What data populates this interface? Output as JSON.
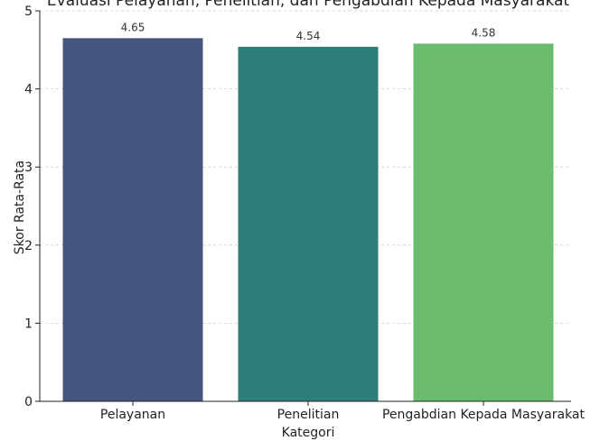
{
  "chart_data": {
    "type": "bar",
    "title": "Evaluasi Pelayanan, Penelitian, dan Pengabdian Kepada Masyarakat",
    "xlabel": "Kategori",
    "ylabel": "Skor Rata-Rata",
    "categories": [
      "Pelayanan",
      "Penelitian",
      "Pengabdian Kepada Masyarakat"
    ],
    "values": [
      4.65,
      4.54,
      4.58
    ],
    "data_labels": [
      "4.65",
      "4.54",
      "4.58"
    ],
    "colors": [
      "#46557d",
      "#2e7f7a",
      "#6abb6e"
    ],
    "ylim": [
      0,
      5
    ],
    "yticks": [
      "0",
      "1",
      "2",
      "3",
      "4",
      "5"
    ],
    "grid": "y-dashed",
    "legend": "none"
  }
}
